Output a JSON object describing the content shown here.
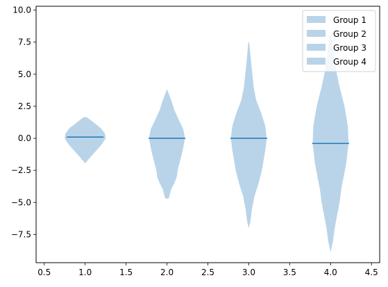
{
  "chart_data": {
    "type": "violin",
    "title": "",
    "xlabel": "",
    "ylabel": "",
    "xlim": [
      0.4,
      4.6
    ],
    "ylim": [
      -9.7,
      10.3
    ],
    "x_ticks": [
      0.5,
      1.0,
      1.5,
      2.0,
      2.5,
      3.0,
      3.5,
      4.0,
      4.5
    ],
    "x_tick_labels": [
      "0.5",
      "1.0",
      "1.5",
      "2.0",
      "2.5",
      "3.0",
      "3.5",
      "4.0",
      "4.5"
    ],
    "y_ticks": [
      -7.5,
      -5.0,
      -2.5,
      0.0,
      2.5,
      5.0,
      7.5,
      10.0
    ],
    "y_tick_labels": [
      "−7.5",
      "−5.0",
      "−2.5",
      "0.0",
      "2.5",
      "5.0",
      "7.5",
      "10.0"
    ],
    "grid": false,
    "legend_position": "top-right",
    "fill_color": "#b9d4e9",
    "line_color": "#1f77b4",
    "series": [
      {
        "name": "Group 1",
        "position": 1,
        "median": 0.1,
        "profile": [
          [
            -1.95,
            0
          ],
          [
            -1.8,
            0.02
          ],
          [
            -1.5,
            0.06
          ],
          [
            -1.0,
            0.13
          ],
          [
            -0.5,
            0.2
          ],
          [
            0,
            0.25
          ],
          [
            0.4,
            0.24
          ],
          [
            0.8,
            0.19
          ],
          [
            1.2,
            0.11
          ],
          [
            1.5,
            0.05
          ],
          [
            1.65,
            0.02
          ]
        ]
      },
      {
        "name": "Group 2",
        "position": 2,
        "median": 0.0,
        "profile": [
          [
            -4.7,
            0.02
          ],
          [
            -4.5,
            0.03
          ],
          [
            -4.0,
            0.05
          ],
          [
            -3.5,
            0.09
          ],
          [
            -3.0,
            0.12
          ],
          [
            -2.5,
            0.13
          ],
          [
            -2.0,
            0.15
          ],
          [
            -1.0,
            0.19
          ],
          [
            0,
            0.22
          ],
          [
            0.7,
            0.2
          ],
          [
            1.5,
            0.14
          ],
          [
            2.2,
            0.09
          ],
          [
            3.0,
            0.05
          ],
          [
            3.5,
            0.02
          ],
          [
            3.85,
            0
          ]
        ]
      },
      {
        "name": "Group 3",
        "position": 3,
        "median": 0.0,
        "profile": [
          [
            -7.0,
            0
          ],
          [
            -6.5,
            0.02
          ],
          [
            -5.5,
            0.04
          ],
          [
            -4.5,
            0.07
          ],
          [
            -3.5,
            0.12
          ],
          [
            -2.5,
            0.16
          ],
          [
            -1.0,
            0.2
          ],
          [
            0,
            0.22
          ],
          [
            1.0,
            0.2
          ],
          [
            2.0,
            0.15
          ],
          [
            3.0,
            0.09
          ],
          [
            4.0,
            0.06
          ],
          [
            5.5,
            0.035
          ],
          [
            6.5,
            0.02
          ],
          [
            7.5,
            0.005
          ]
        ]
      },
      {
        "name": "Group 4",
        "position": 4,
        "median": -0.4,
        "profile": [
          [
            -8.9,
            0
          ],
          [
            -8.0,
            0.03
          ],
          [
            -7.0,
            0.05
          ],
          [
            -6.0,
            0.08
          ],
          [
            -5.0,
            0.11
          ],
          [
            -4.0,
            0.13
          ],
          [
            -3.0,
            0.16
          ],
          [
            -2.0,
            0.19
          ],
          [
            -0.4,
            0.22
          ],
          [
            1.0,
            0.21
          ],
          [
            2.5,
            0.17
          ],
          [
            4.0,
            0.11
          ],
          [
            5.5,
            0.06
          ],
          [
            7.0,
            0.03
          ],
          [
            8.0,
            0.015
          ]
        ]
      }
    ]
  }
}
